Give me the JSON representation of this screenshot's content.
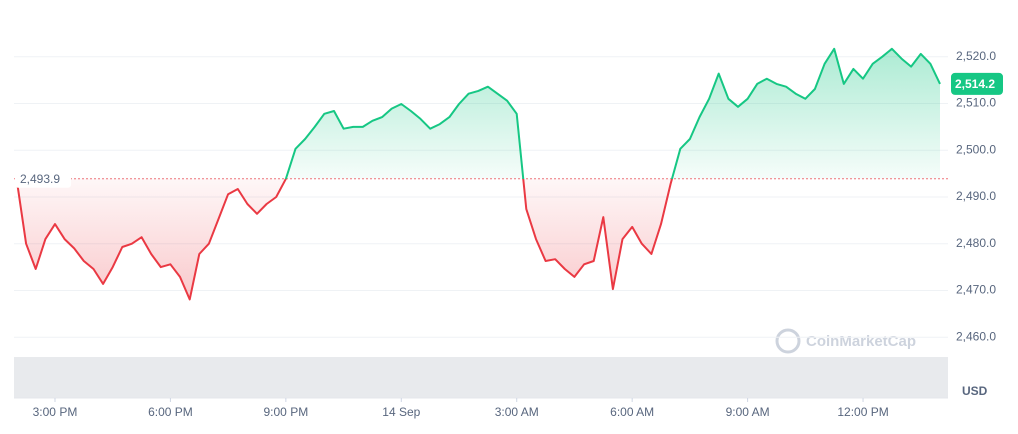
{
  "chart_data": {
    "type": "line",
    "categories": [
      null,
      null,
      null,
      null,
      "3:00 PM",
      null,
      null,
      null,
      null,
      null,
      null,
      null,
      null,
      null,
      null,
      null,
      "6:00 PM",
      null,
      null,
      null,
      null,
      null,
      null,
      null,
      null,
      null,
      null,
      null,
      "9:00 PM",
      null,
      null,
      null,
      null,
      null,
      null,
      null,
      null,
      null,
      null,
      null,
      "14 Sep",
      null,
      null,
      null,
      null,
      null,
      null,
      null,
      null,
      null,
      null,
      null,
      "3:00 AM",
      null,
      null,
      null,
      null,
      null,
      null,
      null,
      null,
      null,
      null,
      null,
      "6:00 AM",
      null,
      null,
      null,
      null,
      null,
      null,
      null,
      null,
      null,
      null,
      null,
      "9:00 AM",
      null,
      null,
      null,
      null,
      null,
      null,
      null,
      null,
      null,
      null,
      null,
      "12:00 PM",
      null,
      null,
      null,
      null,
      null,
      null,
      null,
      null
    ],
    "values": [
      2494,
      2480,
      2474.6,
      2481,
      2484.2,
      2481,
      2479,
      2476.3,
      2474.6,
      2471.4,
      2475,
      2479.3,
      2480,
      2481.4,
      2477.8,
      2475,
      2475.6,
      2472.9,
      2468.1,
      2477.8,
      2480,
      2485.3,
      2490.6,
      2491.7,
      2488.5,
      2486.4,
      2488.5,
      2490,
      2493.9,
      2500.3,
      2502.4,
      2505,
      2507.8,
      2508.4,
      2504.6,
      2505,
      2505,
      2506.3,
      2507.1,
      2508.9,
      2509.9,
      2508.4,
      2506.7,
      2504.6,
      2505.6,
      2507.1,
      2509.9,
      2512.1,
      2512.7,
      2513.6,
      2512.1,
      2510.6,
      2507.8,
      2487.4,
      2481,
      2476.3,
      2476.7,
      2474.6,
      2472.9,
      2475.6,
      2476.3,
      2485.7,
      2470.3,
      2481,
      2483.6,
      2480,
      2477.8,
      2484.2,
      2492.8,
      2500.3,
      2502.4,
      2507.1,
      2511,
      2516.4,
      2511,
      2509.3,
      2511,
      2514.2,
      2515.3,
      2514.2,
      2513.6,
      2512.1,
      2511,
      2513.1,
      2518.5,
      2521.7,
      2514.2,
      2517.4,
      2515.3,
      2518.5,
      2520,
      2521.7,
      2519.6,
      2517.9,
      2520.6,
      2518.5,
      2514.2
    ],
    "color_above": "#16c784",
    "color_below": "#ea3943",
    "baseline": {
      "value": 2493.9,
      "label": "2,493.9"
    },
    "current_price": {
      "value": 2514.2,
      "label": "2,514.2"
    },
    "ylim": [
      2447,
      2530
    ],
    "yticks": [
      {
        "value": 2460,
        "label": "2,460.0"
      },
      {
        "value": 2470,
        "label": "2,470.0"
      },
      {
        "value": 2480,
        "label": "2,480.0"
      },
      {
        "value": 2490,
        "label": "2,490.0"
      },
      {
        "value": 2500,
        "label": "2,500.0"
      },
      {
        "value": 2510,
        "label": "2,510.0"
      },
      {
        "value": 2520,
        "label": "2,520.0"
      }
    ],
    "grid": true,
    "watermark": "CoinMarketCap",
    "currency": "USD"
  }
}
